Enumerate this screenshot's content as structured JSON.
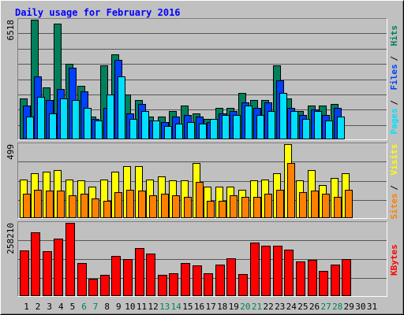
{
  "title": "Daily usage for February 2016",
  "colors": {
    "background": "#c0c0c0",
    "title": "#0000ff",
    "hits": "#00805c",
    "files": "#0040ff",
    "pages": "#00e0ff",
    "visits": "#ffff00",
    "sites": "#ff8000",
    "kbytes": "#ff0000",
    "weekend_label": "#00805c",
    "weekday_label": "#000000"
  },
  "chart_data": [
    {
      "type": "bar",
      "title": "Daily usage for February 2016",
      "x": [
        1,
        2,
        3,
        4,
        5,
        6,
        7,
        8,
        9,
        10,
        11,
        12,
        13,
        14,
        15,
        16,
        17,
        18,
        19,
        20,
        21,
        22,
        23,
        24,
        25,
        26,
        27,
        28,
        29,
        30,
        31
      ],
      "weekend_days": [
        6,
        7,
        13,
        14,
        20,
        21,
        27,
        28
      ],
      "max_label": "6518",
      "ylim": [
        0,
        6518
      ],
      "legend": [
        "Pages",
        "Files",
        "Hits"
      ],
      "grid": true,
      "series": [
        {
          "name": "Hits",
          "color": "#00805c",
          "values": [
            2200,
            6518,
            2800,
            6300,
            4100,
            2900,
            1200,
            4000,
            4600,
            2400,
            2100,
            1200,
            1200,
            1500,
            1800,
            1400,
            1100,
            1700,
            1700,
            2500,
            2100,
            2100,
            4000,
            2200,
            1500,
            1800,
            1800,
            1900,
            null,
            null,
            null
          ]
        },
        {
          "name": "Files",
          "color": "#0040ff",
          "values": [
            1800,
            3400,
            2100,
            2700,
            3900,
            2600,
            1100,
            1700,
            4300,
            1400,
            1900,
            1000,
            900,
            1200,
            1300,
            1200,
            900,
            1400,
            1500,
            2000,
            1700,
            2000,
            3200,
            1700,
            1300,
            1600,
            1300,
            1700,
            null,
            null,
            null
          ]
        },
        {
          "name": "Pages",
          "color": "#00e0ff",
          "values": [
            1200,
            2300,
            1400,
            2200,
            2100,
            1700,
            1000,
            2400,
            3400,
            1100,
            1500,
            1000,
            700,
            800,
            900,
            800,
            1100,
            1300,
            1300,
            1800,
            1300,
            1500,
            2500,
            1500,
            1100,
            1500,
            1000,
            1200,
            null,
            null,
            null
          ]
        }
      ]
    },
    {
      "type": "bar",
      "x": [
        1,
        2,
        3,
        4,
        5,
        6,
        7,
        8,
        9,
        10,
        11,
        12,
        13,
        14,
        15,
        16,
        17,
        18,
        19,
        20,
        21,
        22,
        23,
        24,
        25,
        26,
        27,
        28,
        29,
        30,
        31
      ],
      "max_label": "499",
      "ylim": [
        0,
        499
      ],
      "legend": [
        "Sites",
        "Visits"
      ],
      "grid": true,
      "series": [
        {
          "name": "Visits",
          "color": "#ffff00",
          "values": [
            260,
            300,
            310,
            320,
            260,
            250,
            210,
            260,
            310,
            350,
            350,
            260,
            280,
            250,
            250,
            370,
            210,
            210,
            210,
            190,
            250,
            260,
            300,
            499,
            250,
            320,
            220,
            270,
            300,
            null,
            null
          ]
        },
        {
          "name": "Sites",
          "color": "#ff8000",
          "values": [
            160,
            190,
            180,
            180,
            150,
            160,
            130,
            110,
            170,
            190,
            180,
            150,
            160,
            150,
            140,
            240,
            110,
            110,
            150,
            140,
            140,
            160,
            190,
            370,
            170,
            180,
            160,
            140,
            190,
            null,
            null
          ]
        }
      ]
    },
    {
      "type": "bar",
      "x": [
        1,
        2,
        3,
        4,
        5,
        6,
        7,
        8,
        9,
        10,
        11,
        12,
        13,
        14,
        15,
        16,
        17,
        18,
        19,
        20,
        21,
        22,
        23,
        24,
        25,
        26,
        27,
        28,
        29,
        30,
        31
      ],
      "max_label": "258210",
      "ylim": [
        0,
        258210
      ],
      "legend": [
        "KBytes"
      ],
      "grid": true,
      "series": [
        {
          "name": "KBytes",
          "color": "#ff0000",
          "values": [
            160000,
            224000,
            158000,
            202000,
            258210,
            116000,
            59000,
            74000,
            140000,
            128000,
            168000,
            148000,
            73000,
            78000,
            115000,
            108000,
            79000,
            109000,
            132000,
            75000,
            189000,
            178000,
            178000,
            162000,
            122000,
            125000,
            86000,
            110000,
            130000,
            null,
            null
          ]
        }
      ]
    }
  ]
}
